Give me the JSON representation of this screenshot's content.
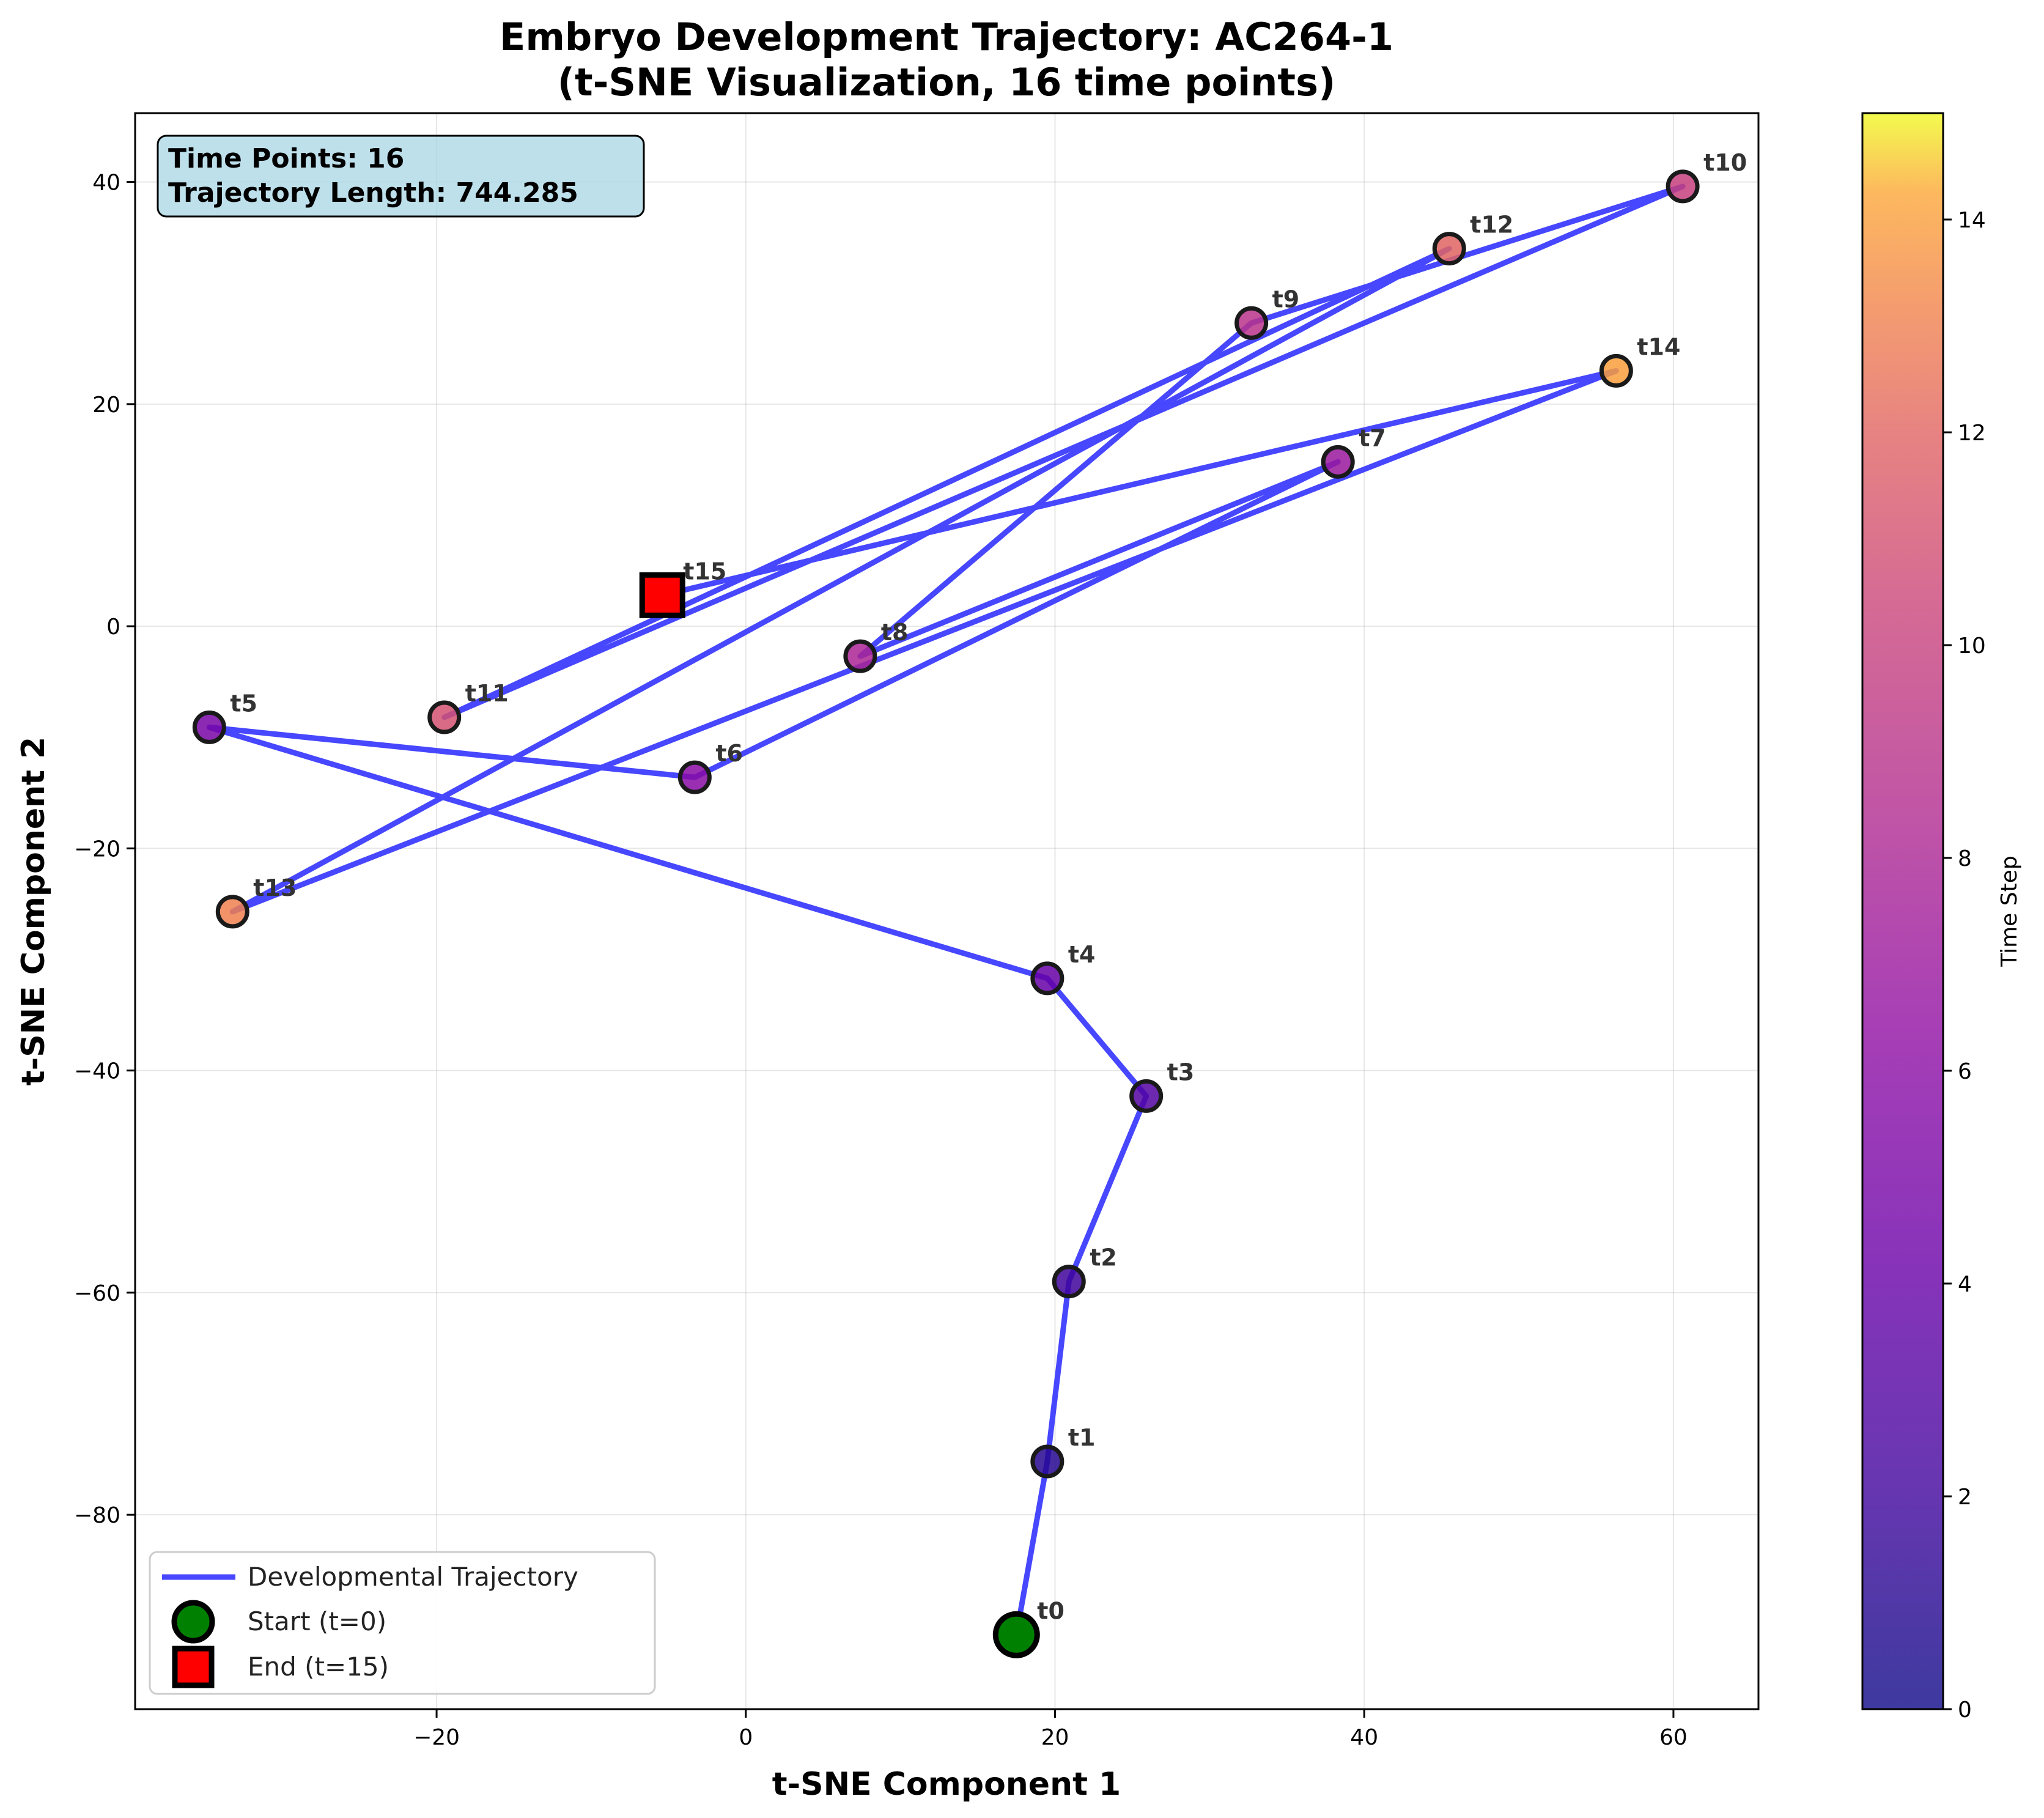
{
  "chart_data": {
    "type": "scatter",
    "title": "Embryo Development Trajectory: AC264-1",
    "subtitle": "(t-SNE Visualization, 16 time points)",
    "xlabel": "t-SNE Component 1",
    "ylabel": "t-SNE Component 2",
    "xlim": [
      -39.5,
      65.5
    ],
    "ylim": [
      -97.5,
      46.2
    ],
    "xticks": [
      -20,
      0,
      20,
      40,
      60
    ],
    "yticks": [
      -80,
      -60,
      -40,
      -20,
      0,
      20,
      40
    ],
    "grid": true,
    "points": [
      {
        "label": "t0",
        "x": 17.5,
        "y": -90.8
      },
      {
        "label": "t1",
        "x": 19.5,
        "y": -75.2
      },
      {
        "label": "t2",
        "x": 20.9,
        "y": -59.0
      },
      {
        "label": "t3",
        "x": 25.9,
        "y": -42.3
      },
      {
        "label": "t4",
        "x": 19.5,
        "y": -31.7
      },
      {
        "label": "t5",
        "x": -34.7,
        "y": -9.1
      },
      {
        "label": "t6",
        "x": -3.3,
        "y": -13.6
      },
      {
        "label": "t7",
        "x": 38.3,
        "y": 14.8
      },
      {
        "label": "t8",
        "x": 7.4,
        "y": -2.7
      },
      {
        "label": "t9",
        "x": 32.7,
        "y": 27.3
      },
      {
        "label": "t10",
        "x": 60.6,
        "y": 39.6
      },
      {
        "label": "t11",
        "x": -19.5,
        "y": -8.2
      },
      {
        "label": "t12",
        "x": 45.5,
        "y": 34.0
      },
      {
        "label": "t13",
        "x": -33.2,
        "y": -25.7
      },
      {
        "label": "t14",
        "x": 56.3,
        "y": 23.0
      },
      {
        "label": "t15",
        "x": -5.4,
        "y": 2.8
      }
    ],
    "series": [
      {
        "name": "Developmental Trajectory",
        "color": "#3333ff"
      },
      {
        "name": "Start (t=0)",
        "color": "#008000"
      },
      {
        "name": "End (t=15)",
        "color": "#ff0000"
      }
    ],
    "info_box": {
      "line1": "Time Points: 16",
      "line2": "Trajectory Length: 744.285"
    },
    "legend_placement": "lower-left",
    "colorbar": {
      "label": "Time Step",
      "colormap": "plasma",
      "range": [
        0,
        15
      ],
      "ticks": [
        0,
        2,
        4,
        6,
        8,
        10,
        12,
        14
      ]
    }
  }
}
